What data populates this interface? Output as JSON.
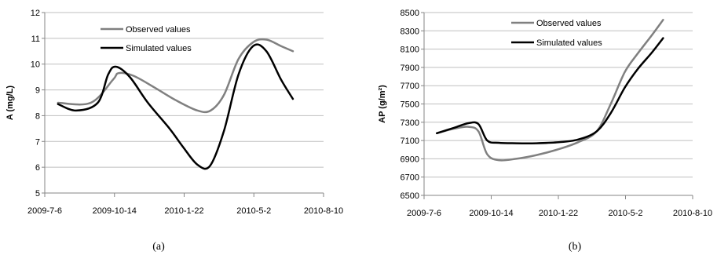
{
  "chart_data": [
    {
      "type": "line",
      "caption": "(a)",
      "ylabel": "A (mg/L)",
      "xlabel": "",
      "ylim": [
        5,
        12
      ],
      "yticks": [
        5,
        6,
        7,
        8,
        9,
        10,
        11,
        12
      ],
      "xticks": [
        "2009-7-6",
        "2009-10-14",
        "2010-1-22",
        "2010-5-2",
        "2010-8-10"
      ],
      "legend_placement": "top-center",
      "grid": "horizontal",
      "series": [
        {
          "name": "Observed values",
          "color": "#808080",
          "x": [
            "2009-7-25",
            "2009-9-10",
            "2009-10-12",
            "2009-10-20",
            "2009-11-10",
            "2009-12-10",
            "2010-1-10",
            "2010-2-10",
            "2010-3-1",
            "2010-3-20",
            "2010-4-10",
            "2010-5-1",
            "2010-5-20",
            "2010-6-10",
            "2010-6-27"
          ],
          "y": [
            8.5,
            8.5,
            9.4,
            9.65,
            9.55,
            9.1,
            8.6,
            8.2,
            8.2,
            8.8,
            10.2,
            10.85,
            10.95,
            10.7,
            10.5
          ]
        },
        {
          "name": "Simulated values",
          "color": "#000000",
          "x": [
            "2009-7-25",
            "2009-8-20",
            "2009-9-20",
            "2009-10-5",
            "2009-10-16",
            "2009-11-5",
            "2009-12-1",
            "2010-1-1",
            "2010-1-20",
            "2010-2-10",
            "2010-2-28",
            "2010-3-20",
            "2010-4-10",
            "2010-5-1",
            "2010-5-20",
            "2010-6-10",
            "2010-6-27"
          ],
          "y": [
            8.45,
            8.2,
            8.5,
            9.6,
            9.9,
            9.5,
            8.5,
            7.5,
            6.8,
            6.1,
            6.05,
            7.4,
            9.6,
            10.7,
            10.5,
            9.4,
            8.65
          ]
        }
      ]
    },
    {
      "type": "line",
      "caption": "(b)",
      "ylabel": "AP (g/m²)",
      "xlabel": "",
      "ylim": [
        6500,
        8500
      ],
      "yticks": [
        6500,
        6700,
        6900,
        7100,
        7300,
        7500,
        7700,
        7900,
        8100,
        8300,
        8500
      ],
      "xticks": [
        "2009-7-6",
        "2009-10-14",
        "2010-1-22",
        "2010-5-2",
        "2010-8-10"
      ],
      "legend_placement": "top-center",
      "grid": "horizontal",
      "series": [
        {
          "name": "Observed values",
          "color": "#808080",
          "x": [
            "2009-7-25",
            "2009-8-20",
            "2009-9-10",
            "2009-9-25",
            "2009-10-8",
            "2009-10-25",
            "2009-11-20",
            "2009-12-20",
            "2010-1-20",
            "2010-2-20",
            "2010-3-20",
            "2010-4-10",
            "2010-5-1",
            "2010-5-20",
            "2010-6-10",
            "2010-6-27"
          ],
          "y": [
            7180,
            7230,
            7250,
            7200,
            6950,
            6885,
            6900,
            6940,
            7000,
            7080,
            7200,
            7500,
            7850,
            8050,
            8250,
            8420
          ]
        },
        {
          "name": "Simulated values",
          "color": "#000000",
          "x": [
            "2009-7-25",
            "2009-8-20",
            "2009-9-10",
            "2009-9-25",
            "2009-10-8",
            "2009-10-25",
            "2009-11-20",
            "2009-12-20",
            "2010-1-20",
            "2010-2-20",
            "2010-3-20",
            "2010-4-10",
            "2010-5-1",
            "2010-5-20",
            "2010-6-10",
            "2010-6-27"
          ],
          "y": [
            7180,
            7240,
            7290,
            7280,
            7100,
            7075,
            7070,
            7070,
            7080,
            7110,
            7200,
            7400,
            7680,
            7880,
            8060,
            8220
          ]
        }
      ]
    }
  ]
}
